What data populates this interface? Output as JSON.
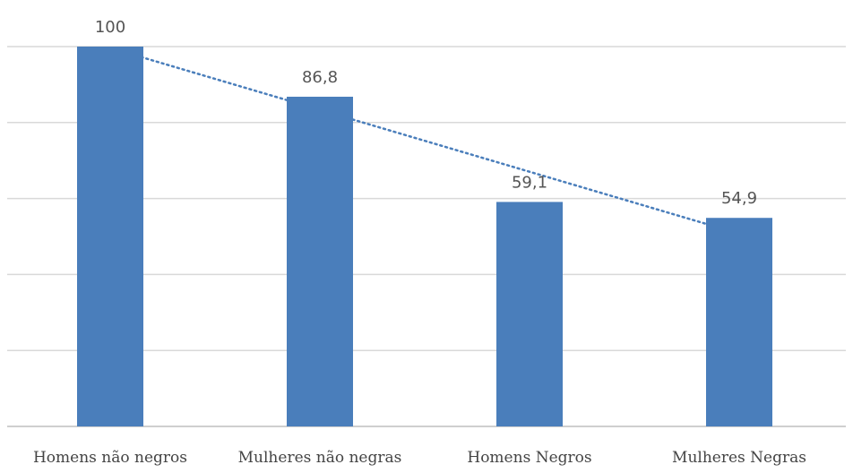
{
  "chart_data": {
    "type": "bar",
    "categories": [
      "Homens não negros",
      "Mulheres não negras",
      "Homens Negros",
      "Mulheres Negras"
    ],
    "values": [
      100,
      86.8,
      59.1,
      54.9
    ],
    "value_labels": [
      "100",
      "86,8",
      "59,1",
      "54,9"
    ],
    "ylim": [
      0,
      100
    ],
    "grid": true,
    "trendline": {
      "type": "linear",
      "style": "dotted"
    },
    "colors": {
      "bar": "#4a7ebb",
      "grid": "#d9d9d9",
      "trend": "#4a7ebb"
    }
  }
}
